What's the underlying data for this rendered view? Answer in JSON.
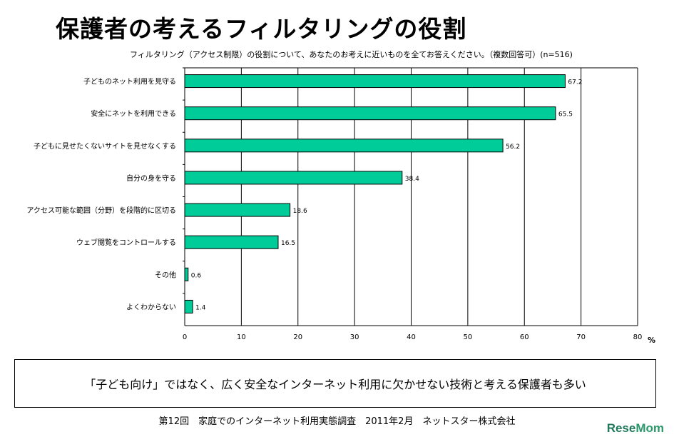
{
  "title": "保護者の考えるフィルタリングの役割",
  "logo": "ReseMom",
  "note": "「子ども向け」ではなく、広く安全なインターネット利用に欠かせない技術と考える保護者も多い",
  "source": "第12回　家庭でのインターネット利用実態調査　2011年2月　ネットスター株式会社",
  "chart_data": {
    "type": "bar",
    "orientation": "horizontal",
    "title": "フィルタリング（アクセス制限）の役割について、あなたのお考えに近いものを全てお答えください。（複数回答可）(n=516)",
    "categories": [
      "子どものネット利用を見守る",
      "安全にネットを利用できる",
      "子どもに見せたくないサイトを見せなくする",
      "自分の身を守る",
      "アクセス可能な範囲（分野）を段階的に区切る",
      "ウェブ閲覧をコントロールする",
      "その他",
      "よくわからない"
    ],
    "values": [
      67.2,
      65.5,
      56.2,
      38.4,
      18.6,
      16.5,
      0.6,
      1.4
    ],
    "data_labels": [
      "67.2",
      "65.5",
      "56.2",
      "38.4",
      "18.6",
      "16.5",
      "0.6",
      "1.4"
    ],
    "xlim": [
      0,
      80
    ],
    "xticks": [
      "0",
      "10",
      "20",
      "30",
      "40",
      "50",
      "60",
      "70",
      "80"
    ],
    "xunit": "%",
    "grid": true,
    "bar_color": "#00CC99"
  }
}
